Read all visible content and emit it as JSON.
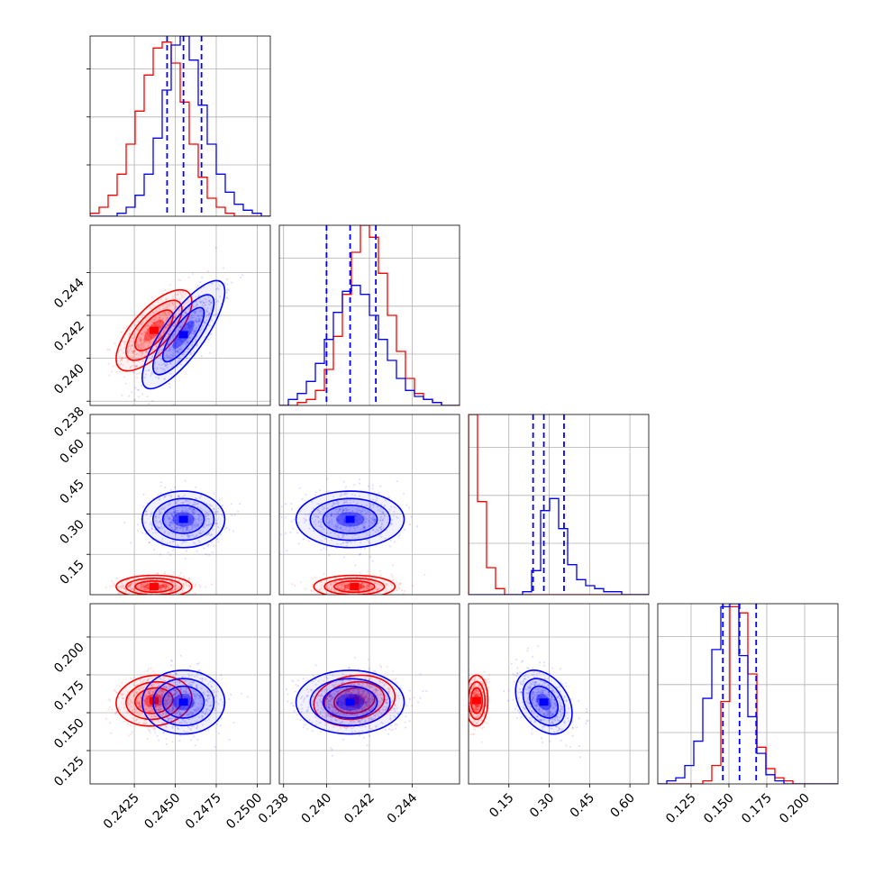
{
  "colors": {
    "red": "#ff0000",
    "blue": "#0000ff"
  },
  "chart_data": {
    "type": "corner",
    "grid": true,
    "n_params": 4,
    "series": [
      {
        "color": "#ff0000",
        "means": [
          0.2437,
          0.2413,
          0.03,
          0.158
        ],
        "sds": [
          0.0011,
          0.0009,
          0.02,
          0.008
        ],
        "corr": [
          [
            1,
            0.7,
            0,
            0.1
          ],
          [
            0.7,
            1,
            0,
            0.15
          ],
          [
            0,
            0,
            1,
            0
          ],
          [
            0.1,
            0.15,
            0,
            1
          ]
        ]
      },
      {
        "color": "#0000ff",
        "means": [
          0.2455,
          0.2411,
          0.28,
          0.157
        ],
        "sds": [
          0.0012,
          0.0012,
          0.05,
          0.01
        ],
        "corr": [
          [
            1,
            0.8,
            0,
            0
          ],
          [
            0.8,
            1,
            0,
            0
          ],
          [
            0,
            0,
            1,
            -0.35
          ],
          [
            0,
            0,
            -0.35,
            1
          ]
        ]
      }
    ],
    "quantiles_dashed_blue": [
      [
        0.2445,
        0.2455,
        0.2466
      ],
      [
        0.24,
        0.2411,
        0.2423
      ],
      [
        0.24,
        0.28,
        0.355
      ],
      [
        0.146,
        0.157,
        0.168
      ]
    ],
    "axes": [
      {
        "range": [
          0.2398,
          0.2508
        ],
        "ticks": [
          "0.2425",
          "0.2450",
          "0.2475",
          "0.2500"
        ],
        "tick_values": [
          0.2425,
          0.245,
          0.2475,
          0.25
        ]
      },
      {
        "range": [
          0.2378,
          0.2462
        ],
        "ticks": [
          "0.238",
          "0.240",
          "0.242",
          "0.244"
        ],
        "tick_values": [
          0.238,
          0.24,
          0.242,
          0.244
        ]
      },
      {
        "range": [
          0.0,
          0.67
        ],
        "ticks": [
          "0.15",
          "0.30",
          "0.45",
          "0.60"
        ],
        "tick_values": [
          0.15,
          0.3,
          0.45,
          0.6
        ]
      },
      {
        "range": [
          0.103,
          0.222
        ],
        "ticks": [
          "0.125",
          "0.150",
          "0.175",
          "0.200"
        ],
        "tick_values": [
          0.125,
          0.15,
          0.175,
          0.2
        ]
      }
    ],
    "histograms": [
      {
        "bins": [
          0.2398,
          0.2508
        ],
        "red": [
          1,
          3,
          7,
          14,
          24,
          35,
          47,
          56,
          58,
          51,
          38,
          24,
          13,
          6,
          3,
          1,
          0,
          0,
          0,
          0
        ],
        "blue": [
          0,
          0,
          0,
          1,
          3,
          7,
          14,
          26,
          42,
          57,
          60,
          52,
          37,
          24,
          14,
          8,
          4,
          2,
          1,
          0
        ]
      },
      {
        "bins": [
          0.2378,
          0.2462
        ],
        "red": [
          0,
          0,
          1,
          2,
          5,
          12,
          23,
          37,
          51,
          60,
          56,
          44,
          30,
          18,
          9,
          4,
          2,
          1,
          0,
          0
        ],
        "blue": [
          0,
          2,
          4,
          8,
          14,
          22,
          31,
          38,
          40,
          37,
          30,
          22,
          15,
          9,
          5,
          3,
          2,
          1,
          0,
          0
        ]
      },
      {
        "bins": [
          0.0,
          0.67
        ],
        "red": [
          60,
          31,
          9,
          2,
          0,
          0,
          0,
          0,
          0,
          0,
          0,
          0,
          0,
          0,
          0,
          0,
          0,
          0,
          0,
          0
        ],
        "blue": [
          0,
          0,
          0,
          0,
          0,
          0,
          1,
          8,
          28,
          32,
          22,
          10,
          5,
          3,
          2,
          1,
          1,
          0,
          0,
          0
        ]
      },
      {
        "bins": [
          0.103,
          0.222
        ],
        "red": [
          0,
          0,
          0,
          0,
          0,
          1,
          6,
          27,
          58,
          56,
          36,
          12,
          5,
          2,
          1,
          0,
          0,
          0,
          0,
          0
        ],
        "blue": [
          0,
          1,
          2,
          6,
          14,
          28,
          44,
          58,
          59,
          42,
          22,
          10,
          3,
          1,
          0,
          0,
          0,
          0,
          0,
          0
        ]
      }
    ]
  }
}
